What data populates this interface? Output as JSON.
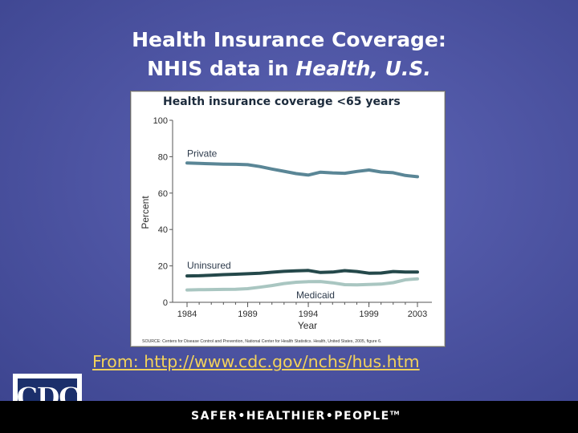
{
  "slide": {
    "title_line1": "Health Insurance Coverage:",
    "title_line2_prefix": "NHIS data in ",
    "title_line2_italic": "Health, U.S.",
    "link_text": "From: http://www.cdc.gov/nchs/hus.htm",
    "footer_tagline": "SAFER•HEALTHIER•PEOPLE",
    "footer_tm": "TM",
    "logo_text": "CDC",
    "logo_tm": "TM"
  },
  "colors": {
    "background": "#4e55a3",
    "title_text": "#ffffff",
    "link": "#f3d25a",
    "footer": "#000000",
    "private": "#5a8696",
    "uninsured": "#24484a",
    "medicaid": "#a9c6c1"
  },
  "chart_data": {
    "type": "line",
    "title": "Health insurance coverage <65 years",
    "xlabel": "Year",
    "ylabel": "Percent",
    "xlim": [
      1984,
      2003
    ],
    "ylim": [
      0,
      100
    ],
    "x_ticks": [
      "1984",
      "1989",
      "1994",
      "1999",
      "2003"
    ],
    "y_ticks": [
      "0",
      "20",
      "40",
      "60",
      "80",
      "100"
    ],
    "grid": false,
    "x": [
      1984,
      1985,
      1986,
      1987,
      1988,
      1989,
      1990,
      1991,
      1992,
      1993,
      1994,
      1995,
      1996,
      1997,
      1998,
      1999,
      2000,
      2001,
      2002,
      2003
    ],
    "series": [
      {
        "name": "Private",
        "color": "#5a8696",
        "values": [
          76.5,
          76.3,
          76.1,
          75.9,
          75.8,
          75.6,
          74.6,
          73.2,
          72.0,
          70.7,
          69.9,
          71.5,
          71.1,
          70.9,
          71.9,
          72.7,
          71.6,
          71.2,
          69.7,
          69.0
        ]
      },
      {
        "name": "Uninsured",
        "color": "#24484a",
        "values": [
          14.5,
          14.6,
          14.9,
          15.2,
          15.4,
          15.7,
          16.0,
          16.5,
          17.0,
          17.3,
          17.5,
          16.4,
          16.6,
          17.4,
          16.9,
          16.0,
          16.1,
          16.9,
          16.6,
          16.6
        ]
      },
      {
        "name": "Medicaid",
        "color": "#a9c6c1",
        "values": [
          6.8,
          6.9,
          7.0,
          7.1,
          7.2,
          7.5,
          8.3,
          9.2,
          10.3,
          11.0,
          11.3,
          11.4,
          10.7,
          9.7,
          9.6,
          9.8,
          10.0,
          10.8,
          12.4,
          12.9
        ]
      }
    ],
    "source_note": "SOURCE: Centers for Disease Control and Prevention, National Center for Health Statistics. Health, United States, 2005, figure 6."
  }
}
